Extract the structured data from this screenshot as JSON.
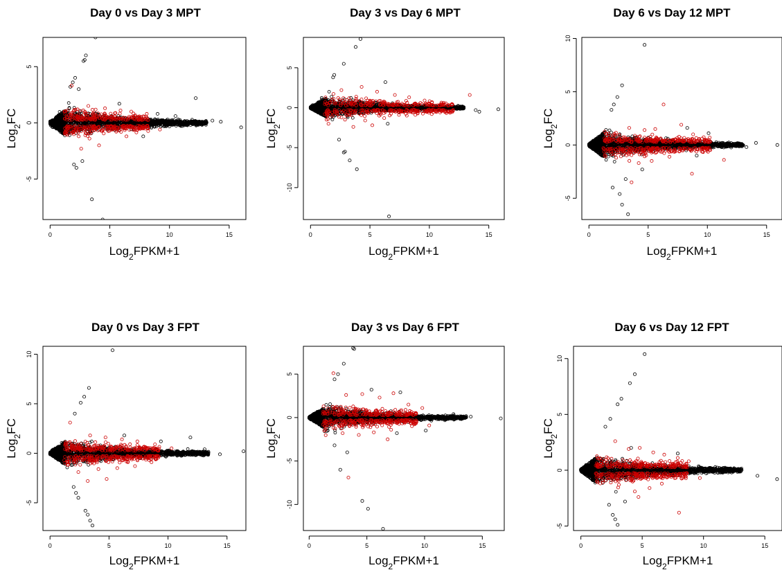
{
  "chart_data": [
    {
      "type": "scatter",
      "title": "Day 0 vs Day 3 MPT",
      "xlabel": "Log2FPKM+1",
      "ylabel": "Log2FC",
      "xlim": [
        -0.6,
        16.4
      ],
      "ylim": [
        -8.6,
        7.6
      ],
      "xticks": [
        0,
        5,
        10,
        15
      ],
      "yticks": [
        -5,
        0,
        5
      ],
      "grid": false,
      "series": [
        {
          "color": "#000000",
          "spread": 1.4,
          "points": [
            [
              3.8,
              7.6
            ],
            [
              3.0,
              6.0
            ],
            [
              2.8,
              5.5
            ],
            [
              2.9,
              5.6
            ],
            [
              2.1,
              4.0
            ],
            [
              1.9,
              3.6
            ],
            [
              1.7,
              3.2
            ],
            [
              2.4,
              3.0
            ],
            [
              5.8,
              1.7
            ],
            [
              12.2,
              2.2
            ],
            [
              10.5,
              0.6
            ],
            [
              13.6,
              0.2
            ],
            [
              14.3,
              0.1
            ],
            [
              16.0,
              -0.4
            ],
            [
              2.0,
              -3.7
            ],
            [
              2.2,
              -4.0
            ],
            [
              2.7,
              -3.4
            ],
            [
              3.5,
              -6.8
            ],
            [
              4.4,
              -8.6
            ],
            [
              7.8,
              -1.2
            ],
            [
              9.0,
              0.8
            ],
            [
              11.4,
              -0.2
            ]
          ]
        },
        {
          "color": "#cc0000",
          "spread": 0.9,
          "points": [
            [
              1.8,
              3.3
            ],
            [
              2.3,
              1.2
            ],
            [
              3.2,
              1.5
            ],
            [
              4.6,
              1.3
            ],
            [
              5.9,
              1.1
            ],
            [
              6.8,
              1.0
            ],
            [
              8.1,
              0.8
            ],
            [
              2.6,
              -2.3
            ],
            [
              4.1,
              -2.0
            ],
            [
              6.4,
              -1.2
            ],
            [
              9.2,
              -0.6
            ],
            [
              3.3,
              -1.4
            ],
            [
              7.0,
              0.6
            ]
          ]
        }
      ]
    },
    {
      "type": "scatter",
      "title": "Day 3 vs Day 6 MPT",
      "xlabel": "Log2FPKM+1",
      "ylabel": "Log2FC",
      "xlim": [
        -0.6,
        16.3
      ],
      "ylim": [
        -14.0,
        8.8
      ],
      "xticks": [
        0,
        5,
        10,
        15
      ],
      "yticks": [
        -10,
        -5,
        0,
        5
      ],
      "grid": false,
      "series": [
        {
          "color": "#000000",
          "spread": 1.4,
          "points": [
            [
              4.2,
              8.6
            ],
            [
              3.8,
              7.6
            ],
            [
              2.8,
              5.5
            ],
            [
              2.0,
              4.1
            ],
            [
              1.9,
              3.8
            ],
            [
              6.3,
              3.2
            ],
            [
              12.6,
              0.1
            ],
            [
              13.9,
              -0.3
            ],
            [
              14.2,
              -0.5
            ],
            [
              15.8,
              -0.2
            ],
            [
              2.9,
              -5.5
            ],
            [
              2.8,
              -5.6
            ],
            [
              3.3,
              -6.6
            ],
            [
              3.9,
              -7.7
            ],
            [
              6.6,
              -13.6
            ],
            [
              2.4,
              -4.0
            ],
            [
              6.5,
              -2.0
            ]
          ]
        },
        {
          "color": "#cc0000",
          "spread": 1.1,
          "points": [
            [
              2.6,
              2.2
            ],
            [
              4.3,
              2.6
            ],
            [
              5.6,
              2.0
            ],
            [
              7.1,
              1.6
            ],
            [
              8.3,
              1.3
            ],
            [
              9.6,
              0.9
            ],
            [
              13.4,
              1.6
            ],
            [
              2.9,
              -1.5
            ],
            [
              4.6,
              -1.6
            ],
            [
              6.2,
              -1.3
            ],
            [
              8.1,
              -1.0
            ],
            [
              10.2,
              -0.8
            ],
            [
              3.6,
              -2.4
            ],
            [
              5.2,
              -2.2
            ],
            [
              10.9,
              -0.6
            ]
          ]
        }
      ]
    },
    {
      "type": "scatter",
      "title": "Day 6 vs Day 12 MPT",
      "xlabel": "Log2FPKM+1",
      "ylabel": "Log2FC",
      "xlim": [
        -0.6,
        16.3
      ],
      "ylim": [
        -7.0,
        10.1
      ],
      "xticks": [
        0,
        5,
        10,
        15
      ],
      "yticks": [
        -5,
        0,
        5,
        10
      ],
      "grid": false,
      "series": [
        {
          "color": "#000000",
          "spread": 1.3,
          "points": [
            [
              4.7,
              9.4
            ],
            [
              2.8,
              5.6
            ],
            [
              2.4,
              4.5
            ],
            [
              2.1,
              3.8
            ],
            [
              1.9,
              3.3
            ],
            [
              8.3,
              1.6
            ],
            [
              10.1,
              1.1
            ],
            [
              11.8,
              -0.1
            ],
            [
              12.9,
              0.1
            ],
            [
              14.1,
              0.2
            ],
            [
              15.9,
              0.0
            ],
            [
              2.0,
              -4.0
            ],
            [
              2.6,
              -4.6
            ],
            [
              2.8,
              -5.6
            ],
            [
              3.3,
              -6.5
            ],
            [
              3.1,
              -3.2
            ],
            [
              4.5,
              -2.3
            ],
            [
              9.1,
              -1.0
            ],
            [
              13.3,
              -0.2
            ]
          ]
        },
        {
          "color": "#cc0000",
          "spread": 0.9,
          "points": [
            [
              6.3,
              3.8
            ],
            [
              3.4,
              1.6
            ],
            [
              4.7,
              1.4
            ],
            [
              5.6,
              1.5
            ],
            [
              7.8,
              1.9
            ],
            [
              8.8,
              1.0
            ],
            [
              2.3,
              -1.2
            ],
            [
              4.2,
              -1.7
            ],
            [
              5.3,
              -1.5
            ],
            [
              6.8,
              -1.1
            ],
            [
              8.7,
              -2.7
            ],
            [
              11.4,
              -1.4
            ],
            [
              3.6,
              -3.5
            ],
            [
              10.2,
              0.7
            ]
          ]
        }
      ]
    },
    {
      "type": "scatter",
      "title": "Day 0 vs Day 3 FPT",
      "xlabel": "Log2FPKM+1",
      "ylabel": "Log2FC",
      "xlim": [
        -0.6,
        16.6
      ],
      "ylim": [
        -7.8,
        10.8
      ],
      "xticks": [
        0,
        5,
        10,
        15
      ],
      "yticks": [
        -5,
        0,
        5,
        10
      ],
      "grid": false,
      "series": [
        {
          "color": "#000000",
          "spread": 1.4,
          "points": [
            [
              5.3,
              10.4
            ],
            [
              3.3,
              6.6
            ],
            [
              2.9,
              5.7
            ],
            [
              2.6,
              5.1
            ],
            [
              2.1,
              4.0
            ],
            [
              11.9,
              1.6
            ],
            [
              13.1,
              0.4
            ],
            [
              14.4,
              -0.1
            ],
            [
              16.4,
              0.2
            ],
            [
              12.9,
              -0.2
            ],
            [
              2.2,
              -4.0
            ],
            [
              2.4,
              -4.5
            ],
            [
              3.0,
              -5.8
            ],
            [
              3.2,
              -6.2
            ],
            [
              3.4,
              -6.8
            ],
            [
              3.6,
              -7.3
            ],
            [
              2.0,
              -3.4
            ],
            [
              6.3,
              1.8
            ],
            [
              9.4,
              1.2
            ]
          ]
        },
        {
          "color": "#cc0000",
          "spread": 1.0,
          "points": [
            [
              1.7,
              3.1
            ],
            [
              3.4,
              1.8
            ],
            [
              4.7,
              1.6
            ],
            [
              6.1,
              1.4
            ],
            [
              7.4,
              1.2
            ],
            [
              8.9,
              0.9
            ],
            [
              10.3,
              0.5
            ],
            [
              2.4,
              -1.9
            ],
            [
              4.1,
              -1.6
            ],
            [
              5.7,
              -1.5
            ],
            [
              7.2,
              -1.3
            ],
            [
              8.6,
              -0.9
            ],
            [
              3.2,
              -2.8
            ],
            [
              4.8,
              -2.6
            ],
            [
              6.4,
              -0.6
            ]
          ]
        }
      ]
    },
    {
      "type": "scatter",
      "title": "Day 3 vs Day 6 FPT",
      "xlabel": "Log2FPKM+1",
      "ylabel": "Log2FC",
      "xlim": [
        -0.5,
        16.9
      ],
      "ylim": [
        -13.0,
        8.2
      ],
      "xticks": [
        0,
        5,
        10,
        15
      ],
      "yticks": [
        -10,
        -5,
        0,
        5
      ],
      "grid": false,
      "series": [
        {
          "color": "#000000",
          "spread": 1.5,
          "points": [
            [
              3.8,
              8.0
            ],
            [
              3.9,
              7.9
            ],
            [
              3.0,
              6.2
            ],
            [
              2.5,
              5.0
            ],
            [
              2.2,
              4.4
            ],
            [
              5.4,
              3.2
            ],
            [
              7.9,
              2.9
            ],
            [
              12.5,
              0.4
            ],
            [
              14.0,
              0.1
            ],
            [
              16.6,
              -0.1
            ],
            [
              2.7,
              -6.0
            ],
            [
              3.3,
              -4.0
            ],
            [
              4.6,
              -9.6
            ],
            [
              5.1,
              -10.5
            ],
            [
              6.4,
              -12.8
            ],
            [
              2.2,
              -3.2
            ],
            [
              7.6,
              -1.8
            ],
            [
              10.1,
              -1.5
            ]
          ]
        },
        {
          "color": "#cc0000",
          "spread": 1.1,
          "points": [
            [
              2.1,
              5.1
            ],
            [
              3.2,
              2.6
            ],
            [
              4.6,
              2.7
            ],
            [
              6.1,
              2.3
            ],
            [
              7.3,
              2.8
            ],
            [
              8.6,
              1.5
            ],
            [
              9.8,
              1.1
            ],
            [
              2.9,
              -1.8
            ],
            [
              4.3,
              -2.0
            ],
            [
              5.6,
              -1.7
            ],
            [
              7.1,
              -1.4
            ],
            [
              8.9,
              -1.0
            ],
            [
              10.4,
              -0.9
            ],
            [
              3.4,
              -6.9
            ],
            [
              6.8,
              -2.5
            ]
          ]
        }
      ]
    },
    {
      "type": "scatter",
      "title": "Day 6 vs Day 12 FPT",
      "xlabel": "Log2FPKM+1",
      "ylabel": "Log2FC",
      "xlim": [
        -0.6,
        16.4
      ],
      "ylim": [
        -5.4,
        11.1
      ],
      "xticks": [
        0,
        5,
        10,
        15
      ],
      "yticks": [
        -5,
        0,
        5,
        10
      ],
      "grid": false,
      "series": [
        {
          "color": "#000000",
          "spread": 1.3,
          "points": [
            [
              5.2,
              10.4
            ],
            [
              4.4,
              8.6
            ],
            [
              4.0,
              7.8
            ],
            [
              3.3,
              6.4
            ],
            [
              3.0,
              5.9
            ],
            [
              2.4,
              4.6
            ],
            [
              2.0,
              3.9
            ],
            [
              11.6,
              0.2
            ],
            [
              12.8,
              0.0
            ],
            [
              14.4,
              -0.5
            ],
            [
              16.0,
              -0.8
            ],
            [
              2.3,
              -3.1
            ],
            [
              2.6,
              -4.0
            ],
            [
              2.8,
              -4.4
            ],
            [
              3.0,
              -4.9
            ],
            [
              3.6,
              -2.8
            ],
            [
              4.1,
              2.0
            ],
            [
              7.9,
              1.5
            ]
          ]
        },
        {
          "color": "#cc0000",
          "spread": 0.9,
          "points": [
            [
              2.8,
              2.6
            ],
            [
              3.9,
              1.9
            ],
            [
              4.8,
              2.0
            ],
            [
              5.9,
              1.6
            ],
            [
              6.8,
              1.4
            ],
            [
              7.9,
              1.1
            ],
            [
              8.8,
              0.8
            ],
            [
              3.1,
              -1.3
            ],
            [
              4.4,
              -1.9
            ],
            [
              5.6,
              -1.6
            ],
            [
              6.6,
              -1.2
            ],
            [
              8.0,
              -3.8
            ],
            [
              9.7,
              -0.7
            ],
            [
              4.7,
              -2.4
            ]
          ]
        }
      ]
    }
  ]
}
